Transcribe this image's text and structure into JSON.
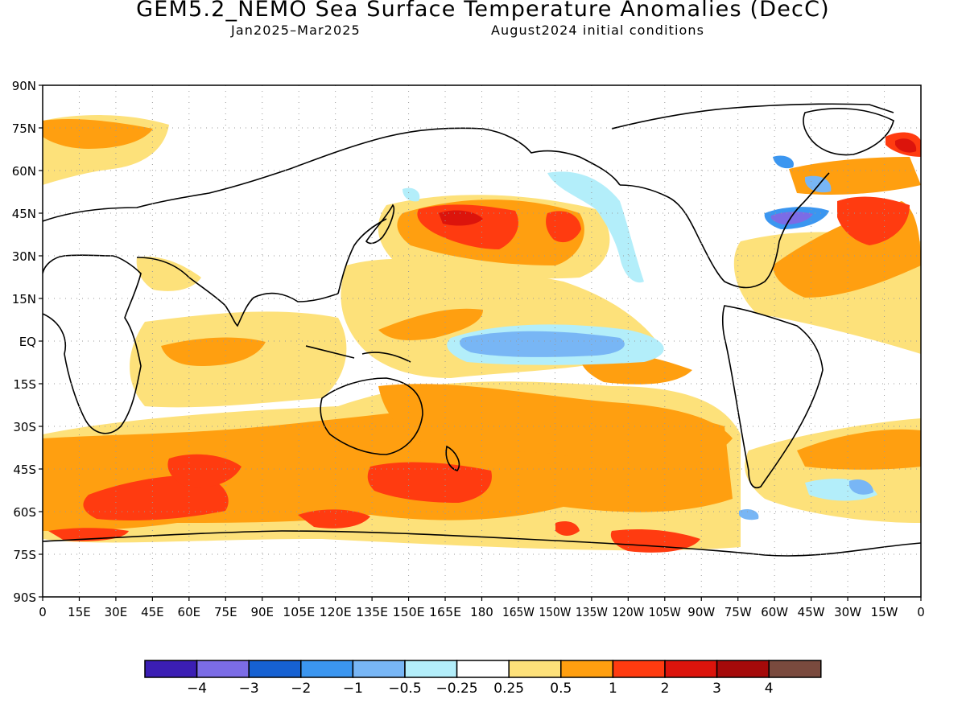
{
  "title": "GEM5.2_NEMO Sea Surface Temperature Anomalies (DecC)",
  "subtitle_period": "Jan2025–Mar2025",
  "subtitle_init": "August2024 initial conditions",
  "axes": {
    "lat_labels": [
      "90N",
      "75N",
      "60N",
      "45N",
      "30N",
      "15N",
      "EQ",
      "15S",
      "30S",
      "45S",
      "60S",
      "75S",
      "90S"
    ],
    "lon_labels": [
      "0",
      "15E",
      "30E",
      "45E",
      "60E",
      "75E",
      "90E",
      "105E",
      "120E",
      "135E",
      "150E",
      "165E",
      "180",
      "165W",
      "150W",
      "135W",
      "120W",
      "105W",
      "90W",
      "75W",
      "60W",
      "45W",
      "30W",
      "15W",
      "0"
    ]
  },
  "colorbar": {
    "colors": [
      "#3b1eb4",
      "#7b6ce6",
      "#1661d2",
      "#3b96f0",
      "#78b6f5",
      "#b3eefa",
      "#ffffff",
      "#fde17a",
      "#ff9f10",
      "#ff3b10",
      "#dc140c",
      "#a50a0a",
      "#7a4a3e"
    ],
    "labels": [
      "−4",
      "−3",
      "−2",
      "−1",
      "−0.5",
      "−0.25",
      "0.25",
      "0.5",
      "1",
      "2",
      "3",
      "4"
    ]
  },
  "map": {
    "projection": "equirectangular",
    "lon_range": [
      0,
      360
    ],
    "lat_range": [
      -90,
      90
    ],
    "grid": true,
    "regions": [
      {
        "name": "north-pacific-warm-anomaly",
        "level": "1",
        "color": "#ff9f10"
      },
      {
        "name": "kuroshio-extension-hot-spot",
        "level": "2",
        "color": "#ff3b10"
      },
      {
        "name": "equatorial-pacific-cold-tongue",
        "level": "-1",
        "color": "#78b6f5"
      },
      {
        "name": "gulf-stream-cold-anomaly",
        "level": "-3",
        "color": "#7b6ce6"
      },
      {
        "name": "southern-ocean-warm-belt",
        "level": "1",
        "color": "#ff9f10"
      },
      {
        "name": "south-indian-ocean-hot-spot",
        "level": "2",
        "color": "#ff3b10"
      },
      {
        "name": "south-atlantic-cold-patch",
        "level": "-1",
        "color": "#78b6f5"
      },
      {
        "name": "nw-atlantic-subpolar-cold",
        "level": "-1",
        "color": "#3b96f0"
      },
      {
        "name": "barents-sea-warm-anomaly",
        "level": "1",
        "color": "#ff9f10"
      }
    ]
  }
}
